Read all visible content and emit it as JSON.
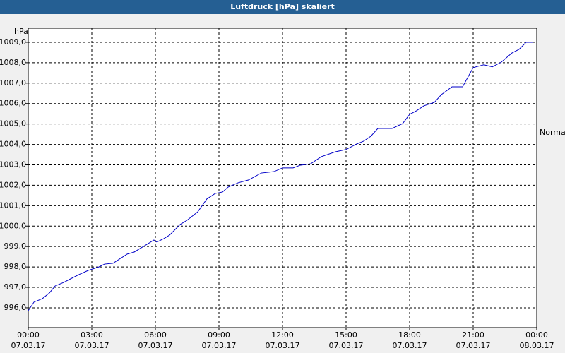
{
  "chart_data": {
    "type": "line",
    "title": "Luftdruck [hPa] skaliert",
    "y_label": "hPa",
    "xlim": [
      0,
      24
    ],
    "ylim": [
      995.03,
      1009.69
    ],
    "grid": true,
    "xticks": [
      {
        "value": 0,
        "label": "00:00",
        "date": "07.03.17"
      },
      {
        "value": 3,
        "label": "03:00",
        "date": "07.03.17"
      },
      {
        "value": 6,
        "label": "06:00",
        "date": "07.03.17"
      },
      {
        "value": 9,
        "label": "09:00",
        "date": "07.03.17"
      },
      {
        "value": 12,
        "label": "12:00",
        "date": "07.03.17"
      },
      {
        "value": 15,
        "label": "15:00",
        "date": "07.03.17"
      },
      {
        "value": 18,
        "label": "18:00",
        "date": "07.03.17"
      },
      {
        "value": 21,
        "label": "21:00",
        "date": "07.03.17"
      },
      {
        "value": 24,
        "label": "00:00",
        "date": "08.03.17"
      }
    ],
    "yticks": [
      {
        "value": 996,
        "label": "996,0"
      },
      {
        "value": 997,
        "label": "997,0"
      },
      {
        "value": 998,
        "label": "998,0"
      },
      {
        "value": 999,
        "label": "999,0"
      },
      {
        "value": 1000,
        "label": "1000,0"
      },
      {
        "value": 1001,
        "label": "1001,0"
      },
      {
        "value": 1002,
        "label": "1002,0"
      },
      {
        "value": 1003,
        "label": "1003,0"
      },
      {
        "value": 1004,
        "label": "1004,0"
      },
      {
        "value": 1005,
        "label": "1005,0"
      },
      {
        "value": 1006,
        "label": "1006,0"
      },
      {
        "value": 1007,
        "label": "1007,0"
      },
      {
        "value": 1008,
        "label": "1008,0"
      },
      {
        "value": 1009,
        "label": "1009,0"
      }
    ],
    "x": [
      0,
      0.27,
      0.67,
      1,
      1.27,
      1.67,
      2,
      2.4,
      2.83,
      3.33,
      3.6,
      4,
      4.67,
      5,
      5.67,
      5.93,
      6.07,
      6.4,
      6.67,
      7.17,
      7.5,
      8,
      8.43,
      8.83,
      9.17,
      9.43,
      9.9,
      10.4,
      11,
      11.6,
      12,
      12.5,
      12.83,
      13.33,
      13.83,
      14.5,
      15,
      15.5,
      15.83,
      16.17,
      16.5,
      17.17,
      17.67,
      18,
      18.33,
      18.67,
      19.17,
      19.5,
      20,
      20.5,
      21,
      21.5,
      21.9,
      22.33,
      22.83,
      23.17,
      23.5,
      23.83
    ],
    "series": [
      {
        "name": "Normal",
        "color": "#0000c8",
        "values": [
          995.86,
          996.28,
          996.45,
          996.73,
          997.07,
          997.24,
          997.42,
          997.63,
          997.83,
          998.0,
          998.14,
          998.18,
          998.63,
          998.73,
          999.15,
          999.32,
          999.22,
          999.39,
          999.56,
          1000.08,
          1000.29,
          1000.7,
          1001.33,
          1001.6,
          1001.67,
          1001.91,
          1002.12,
          1002.26,
          1002.6,
          1002.67,
          1002.85,
          1002.85,
          1002.98,
          1003.05,
          1003.4,
          1003.64,
          1003.75,
          1004.02,
          1004.16,
          1004.4,
          1004.78,
          1004.78,
          1005.02,
          1005.47,
          1005.65,
          1005.89,
          1006.06,
          1006.44,
          1006.82,
          1006.82,
          1007.76,
          1007.9,
          1007.8,
          1008.03,
          1008.48,
          1008.66,
          1009.0,
          1009.0
        ]
      }
    ]
  }
}
